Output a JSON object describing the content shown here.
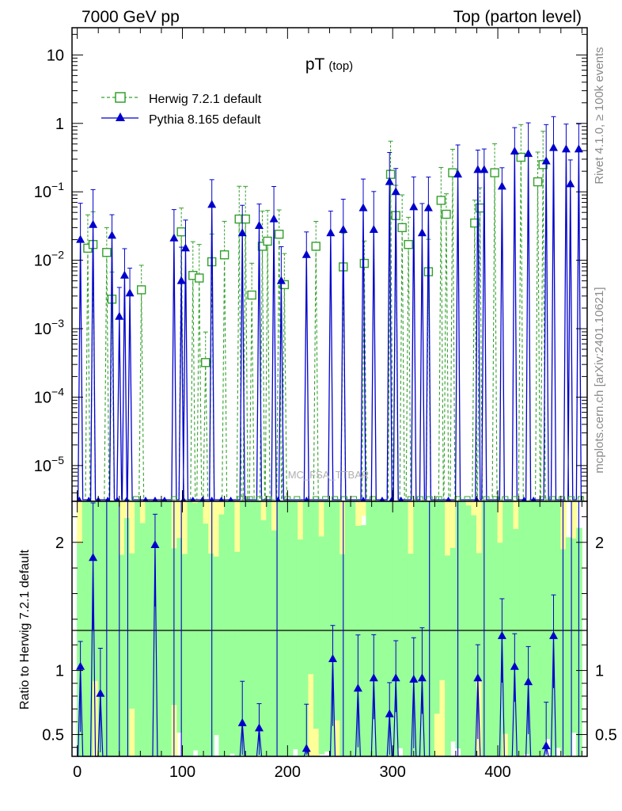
{
  "header": {
    "left": "7000 GeV pp",
    "right": "Top (parton level)"
  },
  "side": {
    "rivet": "Rivet 4.1.0, ≥ 100k events",
    "mcplots": "mcplots.cern.ch [arXiv:2401.10621]"
  },
  "colors": {
    "herwig": "#33a02c",
    "pythia": "#0000cc",
    "band_inner": "#99ff99",
    "band_outer": "#ffff99"
  },
  "chart_data": [
    {
      "type": "line",
      "title": "pT",
      "title_sub": "(top)",
      "watermark": "MC_FSA_TTBAR",
      "yscale": "log",
      "xlim": [
        -5,
        485
      ],
      "ylim": [
        3e-06,
        25
      ],
      "xlabel": "",
      "ylabel": "",
      "y_ticks": [
        "10",
        "1",
        "10^-1",
        "10^-2",
        "10^-3",
        "10^-4",
        "10^-5"
      ],
      "legend_location": "top-left",
      "series": [
        {
          "name": "Herwig 7.2.1 default",
          "style": "dashed-open-square",
          "x": [
            10,
            15,
            28,
            33,
            61,
            99,
            110,
            116,
            122,
            128,
            140,
            154,
            160,
            166,
            176,
            181,
            192,
            197,
            227,
            253,
            273,
            298,
            303,
            309,
            315,
            334,
            346,
            351,
            357,
            378,
            383,
            397,
            422,
            438,
            443
          ],
          "values": [
            0.015,
            0.017,
            0.013,
            0.0027,
            0.0037,
            0.026,
            0.006,
            0.0055,
            0.00032,
            0.0095,
            0.012,
            0.04,
            0.04,
            0.0031,
            0.016,
            0.019,
            0.024,
            0.0044,
            0.016,
            0.008,
            0.009,
            0.18,
            0.045,
            0.03,
            0.017,
            0.0068,
            0.075,
            0.047,
            0.19,
            0.035,
            0.058,
            0.19,
            0.32,
            0.14,
            0.25
          ]
        },
        {
          "name": "Pythia 8.165 default",
          "style": "solid-filled-triangle",
          "x": [
            3,
            15,
            33,
            40,
            45,
            50,
            92,
            99,
            103,
            128,
            157,
            173,
            187,
            194,
            218,
            241,
            253,
            272,
            282,
            297,
            303,
            320,
            328,
            334,
            362,
            381,
            387,
            404,
            416,
            429,
            446,
            453,
            465,
            469,
            477
          ],
          "values": [
            0.02,
            0.033,
            0.023,
            0.0015,
            0.006,
            0.0033,
            0.021,
            0.005,
            0.015,
            0.065,
            0.025,
            0.032,
            0.04,
            0.005,
            0.012,
            0.025,
            0.028,
            0.058,
            0.028,
            0.14,
            0.1,
            0.06,
            0.025,
            0.058,
            0.18,
            0.21,
            0.21,
            0.12,
            0.39,
            0.36,
            0.28,
            0.44,
            0.42,
            0.13,
            0.42
          ]
        }
      ]
    },
    {
      "type": "line",
      "title": "",
      "xlabel": "",
      "ylabel": "Ratio to Herwig 7.2.1 default",
      "xlim": [
        -5,
        485
      ],
      "ylim": [
        0.33,
        2.32
      ],
      "x_ticks": [
        "0",
        "100",
        "200",
        "300",
        "400"
      ],
      "y_ticks": [
        "0.5",
        "1",
        "2"
      ],
      "reference_line": 1,
      "series": [
        {
          "name": "Pythia 8.165 / Herwig 7.2.1 default",
          "style": "solid-filled-triangle",
          "x": [
            3,
            15,
            22,
            74,
            157,
            173,
            218,
            243,
            267,
            282,
            297,
            303,
            320,
            328,
            381,
            404,
            416,
            429,
            446,
            453
          ],
          "values": [
            1.03,
            1.88,
            0.82,
            1.98,
            0.59,
            0.55,
            0.39,
            1.09,
            0.86,
            0.94,
            0.66,
            0.94,
            0.93,
            0.94,
            0.94,
            1.27,
            1.03,
            0.91,
            0.41,
            1.27
          ]
        }
      ]
    }
  ]
}
